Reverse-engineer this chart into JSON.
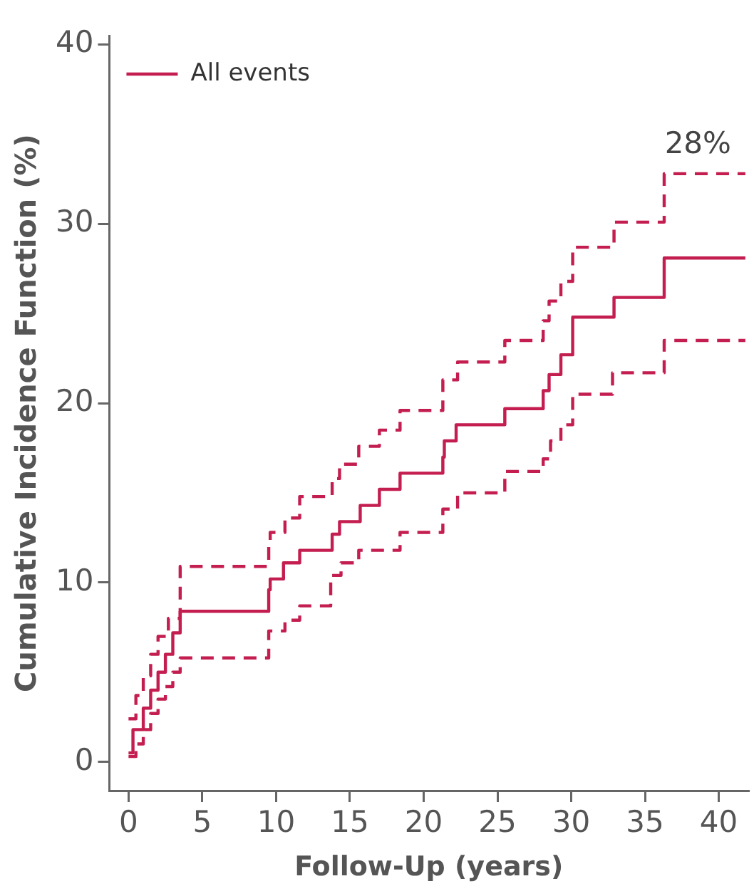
{
  "chart_data": {
    "type": "step",
    "xlabel": "Follow-Up (years)",
    "ylabel": "Cumulative Incidence Function (%)",
    "xlim": [
      -1.3,
      42
    ],
    "ylim": [
      -1.6,
      40.5
    ],
    "xticks": [
      0,
      5,
      10,
      15,
      20,
      25,
      30,
      35,
      40
    ],
    "yticks": [
      0,
      10,
      20,
      30,
      40
    ],
    "grid": false,
    "legend": "top left",
    "marker": "none",
    "series": [
      {
        "name": "All events",
        "color": "#c41e50",
        "line_style": "solid",
        "x": [
          0,
          0.3,
          1,
          1.5,
          2,
          2.5,
          3,
          3.5,
          9.5,
          9.6,
          10.5,
          11.6,
          13.8,
          14.3,
          15.7,
          17,
          18.4,
          21.3,
          21.4,
          22.2,
          25.5,
          28.1,
          28.5,
          29.3,
          30.1,
          32.9,
          36.3,
          41.8
        ],
        "values": [
          0.5,
          1.8,
          3,
          4,
          5,
          6,
          7.2,
          8.4,
          9.6,
          10.2,
          11.1,
          11.8,
          12.7,
          13.4,
          14.3,
          15.2,
          16.1,
          17,
          17.9,
          18.8,
          19.7,
          20.7,
          21.6,
          22.7,
          24.8,
          25.9,
          28.1,
          28.1
        ]
      },
      {
        "color": "#c41e50",
        "line_style": "dashed",
        "x": [
          0,
          0.5,
          1,
          1.5,
          2,
          2.7,
          3.5,
          9.5,
          9.6,
          10.6,
          11.6,
          13.8,
          14.3,
          15.6,
          17,
          18.4,
          21.3,
          22.3,
          25.5,
          28.1,
          28.5,
          29.3,
          30.1,
          32.9,
          36.3,
          41.8
        ],
        "values": [
          2.4,
          3.7,
          4.8,
          6,
          7,
          8,
          10.9,
          12,
          12.8,
          13.6,
          14.8,
          15.8,
          16.6,
          17.6,
          18.5,
          19.6,
          21.3,
          22.3,
          23.5,
          24.6,
          25.7,
          26.8,
          28.7,
          30.1,
          32.8,
          32.8
        ]
      },
      {
        "color": "#c41e50",
        "line_style": "dashed",
        "x": [
          0,
          0.5,
          1,
          1.5,
          2,
          2.5,
          3,
          3.5,
          9.5,
          10.6,
          11.6,
          13.7,
          14.4,
          15.6,
          18.4,
          21.3,
          22.3,
          25.5,
          28.1,
          28.6,
          29.3,
          30.1,
          32.8,
          36.3,
          41.8
        ],
        "values": [
          0.3,
          1,
          1.8,
          2.7,
          3.5,
          4.2,
          5,
          5.8,
          7.3,
          7.9,
          8.7,
          10.4,
          11.1,
          11.8,
          12.8,
          14.1,
          15,
          16.2,
          16.9,
          17.9,
          18.8,
          20.5,
          21.7,
          23.5,
          23.5
        ]
      }
    ],
    "annotations": [
      "28%"
    ]
  }
}
